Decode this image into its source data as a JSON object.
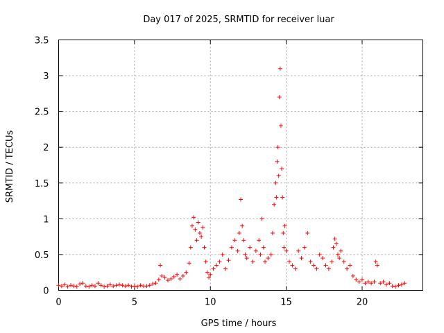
{
  "chart_data": {
    "type": "scatter",
    "title": "Day 017 of 2025, SRMTID for receiver luar",
    "xlabel": "GPS time / hours",
    "ylabel": "SRMTID / TECUs",
    "xlim": [
      0,
      24
    ],
    "ylim": [
      0,
      3.5
    ],
    "xticks": [
      "0",
      "5",
      "10",
      "15",
      "20"
    ],
    "yticks": [
      "0",
      "0.5",
      "1",
      "1.5",
      "2",
      "2.5",
      "3",
      "3.5"
    ],
    "grid": true,
    "marker": "+",
    "color": "#ff0000",
    "series": [
      {
        "name": "SRMTID",
        "x": [
          0.0,
          0.2,
          0.4,
          0.6,
          0.8,
          1.0,
          1.2,
          1.4,
          1.6,
          1.8,
          2.0,
          2.2,
          2.4,
          2.6,
          2.8,
          3.0,
          3.2,
          3.4,
          3.6,
          3.8,
          4.0,
          4.2,
          4.4,
          4.6,
          4.8,
          5.0,
          5.2,
          5.4,
          5.6,
          5.8,
          6.0,
          6.2,
          6.4,
          6.6,
          6.7,
          6.8,
          7.0,
          7.2,
          7.4,
          7.6,
          7.8,
          8.0,
          8.2,
          8.4,
          8.6,
          8.7,
          8.8,
          8.9,
          9.0,
          9.1,
          9.2,
          9.3,
          9.4,
          9.5,
          9.6,
          9.7,
          9.8,
          9.9,
          10.0,
          10.2,
          10.4,
          10.6,
          10.8,
          11.0,
          11.2,
          11.4,
          11.6,
          11.8,
          11.9,
          12.0,
          12.1,
          12.2,
          12.3,
          12.4,
          12.6,
          12.8,
          13.0,
          13.2,
          13.3,
          13.4,
          13.5,
          13.6,
          13.8,
          14.0,
          14.1,
          14.2,
          14.3,
          14.35,
          14.4,
          14.45,
          14.5,
          14.55,
          14.6,
          14.65,
          14.7,
          14.75,
          14.8,
          14.85,
          14.9,
          15.0,
          15.2,
          15.4,
          15.6,
          15.8,
          16.0,
          16.2,
          16.4,
          16.6,
          16.8,
          17.0,
          17.2,
          17.4,
          17.6,
          17.8,
          18.0,
          18.1,
          18.2,
          18.3,
          18.4,
          18.5,
          18.6,
          18.8,
          19.0,
          19.2,
          19.4,
          19.6,
          19.8,
          20.0,
          20.2,
          20.4,
          20.6,
          20.8,
          20.9,
          21.0,
          21.2,
          21.4,
          21.6,
          21.8,
          22.0,
          22.2,
          22.4,
          22.6,
          22.8
        ],
        "y": [
          0.07,
          0.06,
          0.08,
          0.05,
          0.07,
          0.06,
          0.05,
          0.09,
          0.1,
          0.06,
          0.05,
          0.07,
          0.06,
          0.1,
          0.07,
          0.05,
          0.06,
          0.08,
          0.06,
          0.07,
          0.08,
          0.07,
          0.06,
          0.07,
          0.05,
          0.06,
          0.05,
          0.07,
          0.06,
          0.06,
          0.07,
          0.09,
          0.1,
          0.15,
          0.35,
          0.2,
          0.18,
          0.14,
          0.16,
          0.19,
          0.22,
          0.16,
          0.2,
          0.25,
          0.38,
          0.6,
          0.9,
          1.02,
          0.85,
          0.7,
          0.95,
          0.8,
          0.75,
          0.88,
          0.6,
          0.4,
          0.25,
          0.18,
          0.22,
          0.3,
          0.35,
          0.4,
          0.5,
          0.3,
          0.42,
          0.6,
          0.7,
          0.55,
          0.8,
          1.27,
          0.9,
          0.7,
          0.5,
          0.45,
          0.6,
          0.4,
          0.55,
          0.7,
          0.5,
          1.0,
          0.6,
          0.4,
          0.45,
          0.5,
          0.8,
          1.2,
          1.5,
          1.3,
          1.8,
          2.0,
          1.6,
          2.7,
          3.1,
          2.3,
          1.7,
          1.3,
          0.8,
          0.6,
          0.9,
          0.55,
          0.4,
          0.35,
          0.3,
          0.55,
          0.45,
          0.6,
          0.8,
          0.4,
          0.35,
          0.3,
          0.5,
          0.45,
          0.35,
          0.3,
          0.4,
          0.6,
          0.72,
          0.65,
          0.5,
          0.45,
          0.55,
          0.4,
          0.3,
          0.35,
          0.2,
          0.15,
          0.12,
          0.15,
          0.1,
          0.12,
          0.1,
          0.12,
          0.4,
          0.35,
          0.1,
          0.12,
          0.08,
          0.1,
          0.06,
          0.05,
          0.07,
          0.08,
          0.1
        ]
      }
    ]
  }
}
